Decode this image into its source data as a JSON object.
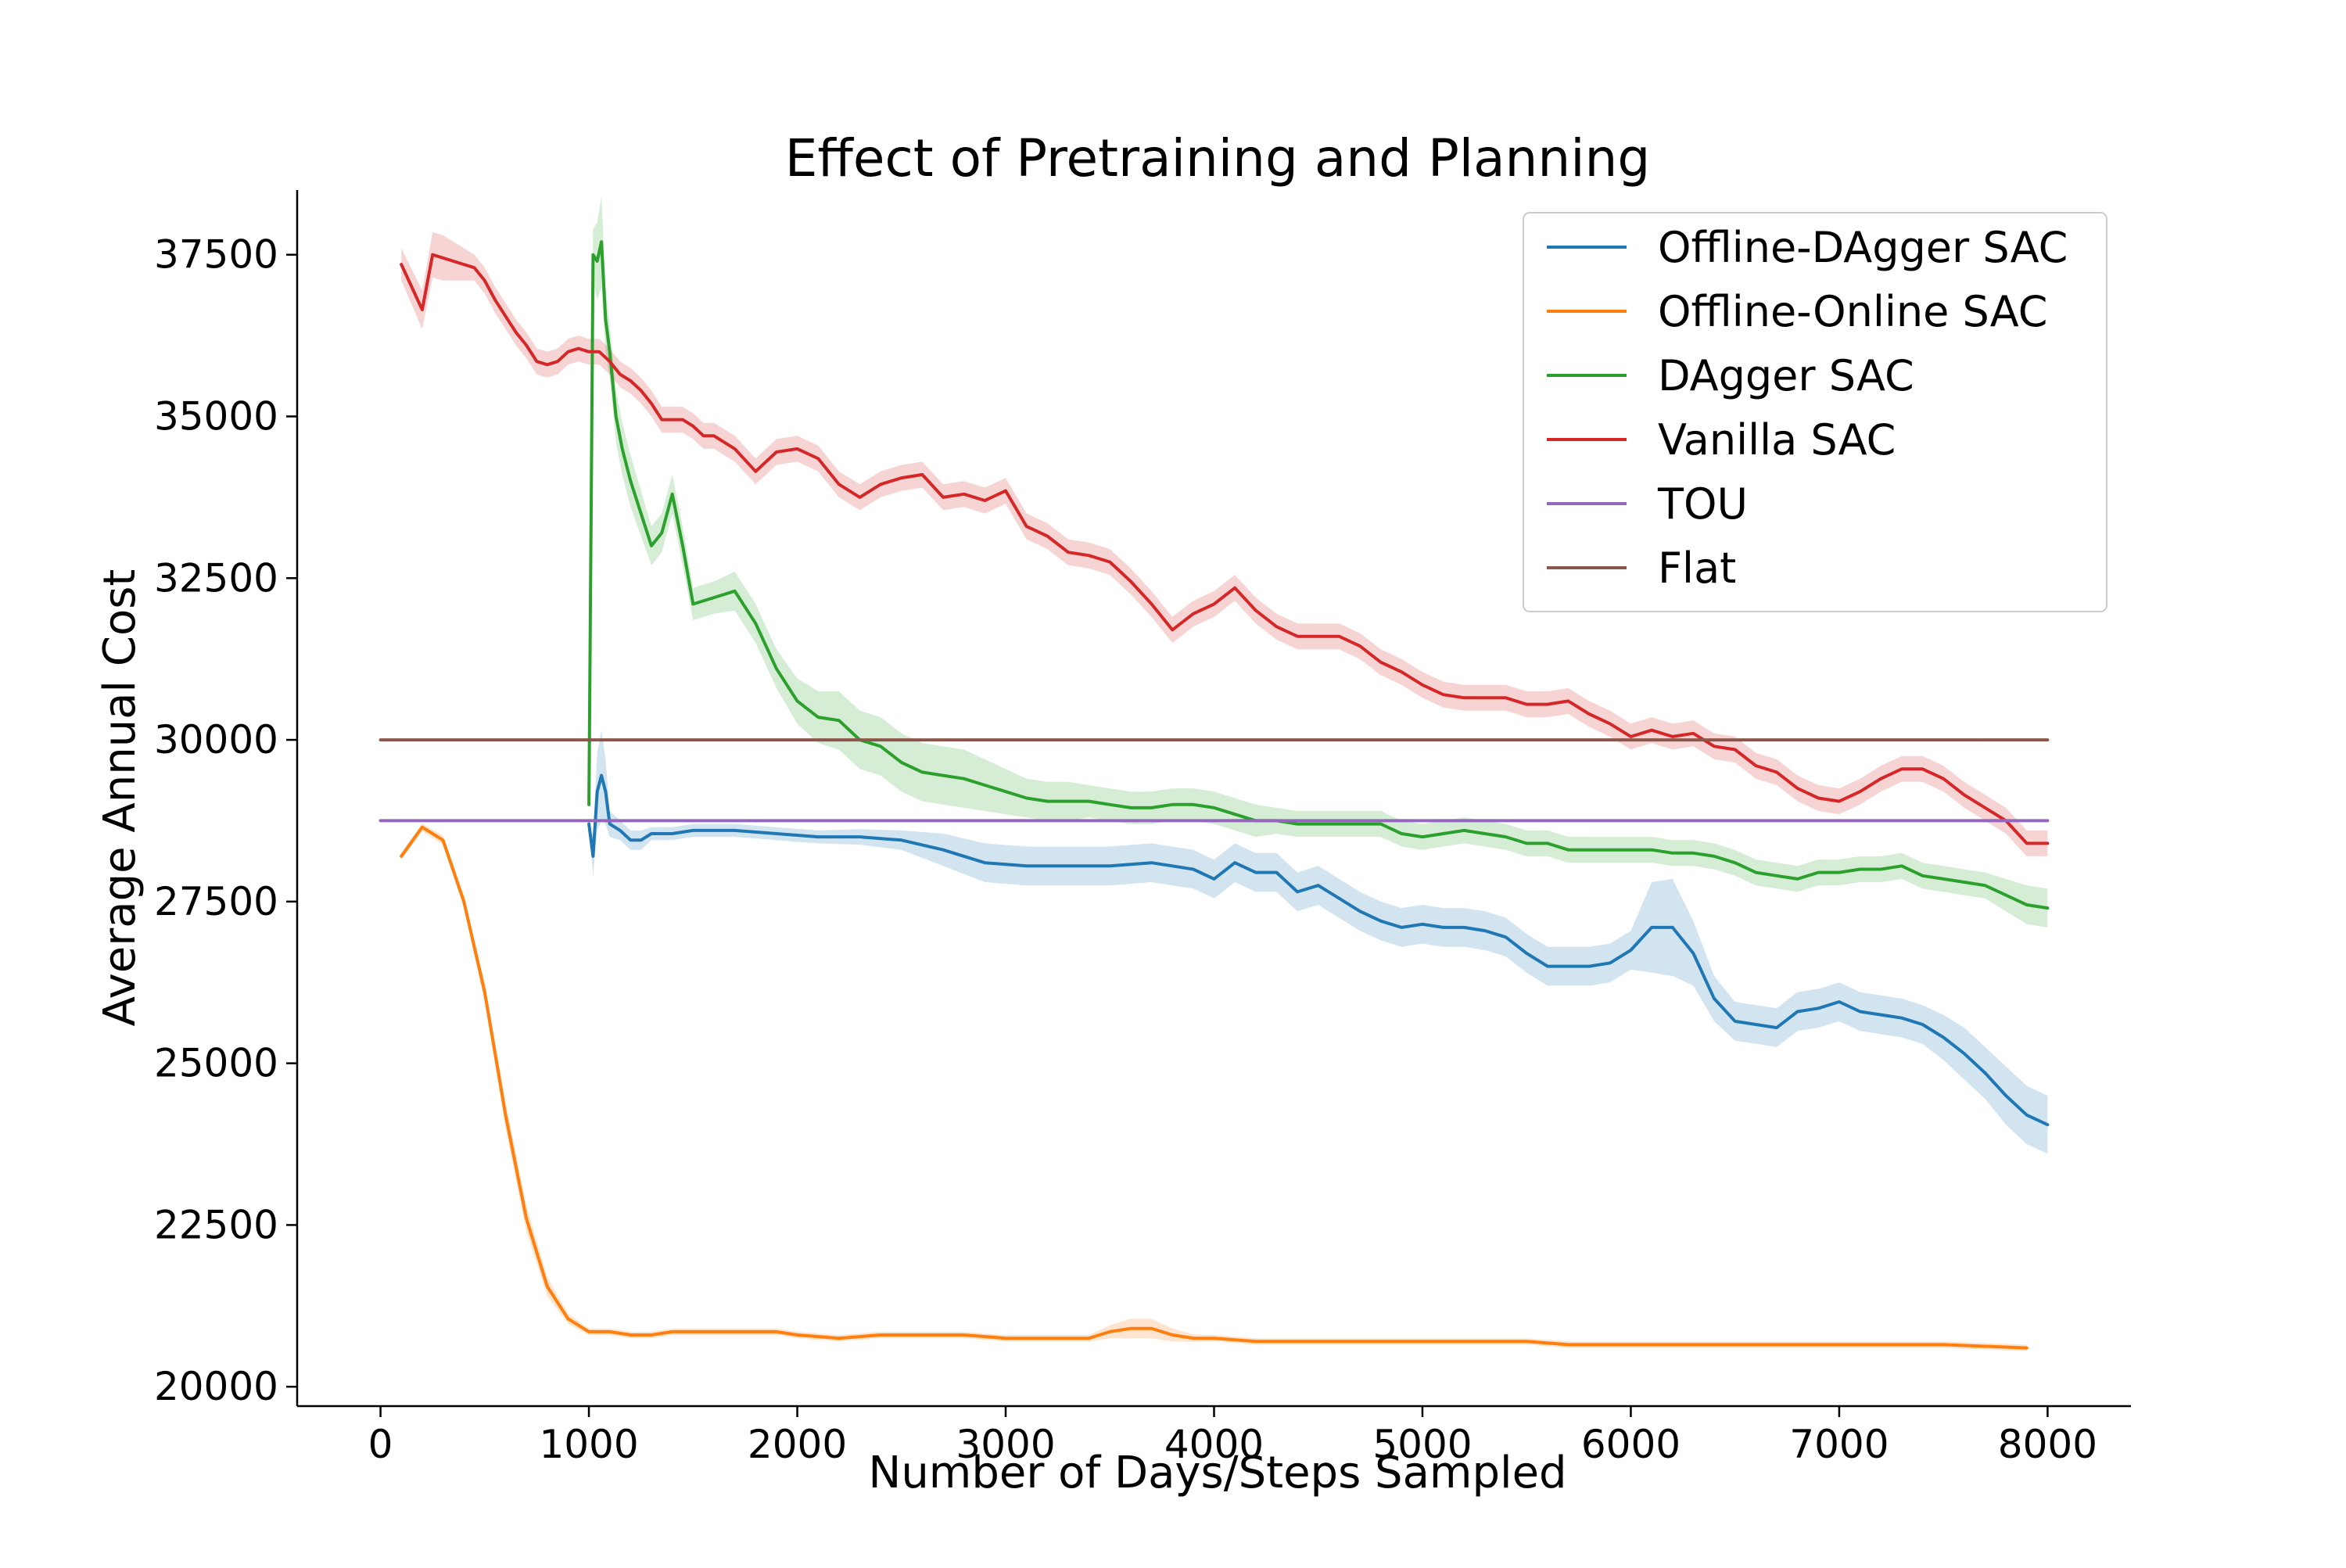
{
  "chart_data": {
    "type": "line",
    "title": "Effect of Pretraining and Planning",
    "xlabel": "Number of Days/Steps Sampled",
    "ylabel": "Average Annual Cost",
    "xlim": [
      -400,
      8400
    ],
    "ylim": [
      19700,
      38500
    ],
    "xticks": [
      0,
      1000,
      2000,
      3000,
      4000,
      5000,
      6000,
      7000,
      8000
    ],
    "yticks": [
      20000,
      22500,
      25000,
      27500,
      30000,
      32500,
      35000,
      37500
    ],
    "grid": false,
    "legend_position": "top-right",
    "series": [
      {
        "name": "Offline-DAgger SAC",
        "color": "#1f77b4",
        "x": [
          1000,
          1020,
          1040,
          1060,
          1080,
          1100,
          1150,
          1200,
          1250,
          1300,
          1400,
          1500,
          1700,
          1900,
          2100,
          2300,
          2500,
          2700,
          2900,
          3100,
          3300,
          3500,
          3700,
          3800,
          3900,
          4000,
          4100,
          4200,
          4300,
          4400,
          4500,
          4600,
          4700,
          4800,
          4900,
          5000,
          5100,
          5200,
          5300,
          5400,
          5500,
          5600,
          5700,
          5800,
          5900,
          6000,
          6100,
          6200,
          6300,
          6400,
          6500,
          6600,
          6700,
          6800,
          6900,
          7000,
          7100,
          7200,
          7300,
          7400,
          7500,
          7600,
          7700,
          7800,
          7900,
          8000
        ],
        "y": [
          28700,
          28200,
          29200,
          29450,
          29200,
          28700,
          28600,
          28450,
          28450,
          28550,
          28550,
          28600,
          28600,
          28550,
          28500,
          28500,
          28450,
          28300,
          28100,
          28050,
          28050,
          28050,
          28100,
          28050,
          28000,
          27850,
          28100,
          27950,
          27950,
          27650,
          27750,
          27550,
          27350,
          27200,
          27100,
          27150,
          27100,
          27100,
          27050,
          26950,
          26700,
          26500,
          26500,
          26500,
          26550,
          26750,
          27100,
          27100,
          26700,
          26000,
          25650,
          25600,
          25550,
          25800,
          25850,
          25950,
          25800,
          25750,
          25700,
          25600,
          25400,
          25150,
          24850,
          24500,
          24200,
          24050
        ],
        "band": [
          0,
          300,
          600,
          700,
          500,
          200,
          150,
          150,
          150,
          100,
          100,
          100,
          100,
          100,
          100,
          120,
          150,
          250,
          300,
          300,
          300,
          300,
          300,
          300,
          300,
          300,
          300,
          300,
          300,
          300,
          300,
          300,
          300,
          300,
          300,
          300,
          300,
          300,
          300,
          300,
          300,
          300,
          300,
          300,
          300,
          300,
          700,
          750,
          500,
          350,
          300,
          300,
          300,
          300,
          300,
          300,
          300,
          300,
          300,
          300,
          350,
          400,
          400,
          450,
          450,
          450
        ]
      },
      {
        "name": "Offline-Online SAC",
        "color": "#ff7f0e",
        "x": [
          100,
          200,
          300,
          400,
          500,
          600,
          700,
          800,
          900,
          1000,
          1100,
          1200,
          1300,
          1400,
          1500,
          1600,
          1700,
          1800,
          1900,
          2000,
          2200,
          2400,
          2600,
          2800,
          3000,
          3200,
          3400,
          3500,
          3600,
          3700,
          3800,
          3900,
          4000,
          4200,
          4500,
          5000,
          5300,
          5500,
          5700,
          6000,
          6500,
          7000,
          7500,
          7900
        ],
        "y": [
          28200,
          28650,
          28450,
          27500,
          26100,
          24200,
          22600,
          21550,
          21050,
          20850,
          20850,
          20800,
          20800,
          20850,
          20850,
          20850,
          20850,
          20850,
          20850,
          20800,
          20750,
          20800,
          20800,
          20800,
          20750,
          20750,
          20750,
          20850,
          20900,
          20900,
          20800,
          20750,
          20750,
          20700,
          20700,
          20700,
          20700,
          20700,
          20650,
          20650,
          20650,
          20650,
          20650,
          20600
        ],
        "band": [
          50,
          60,
          70,
          100,
          150,
          200,
          200,
          150,
          80,
          50,
          50,
          50,
          50,
          50,
          50,
          50,
          50,
          50,
          50,
          50,
          50,
          50,
          50,
          50,
          50,
          50,
          50,
          100,
          150,
          150,
          100,
          60,
          50,
          50,
          50,
          50,
          50,
          50,
          50,
          50,
          50,
          50,
          50,
          50
        ]
      },
      {
        "name": "DAgger SAC",
        "color": "#2ca02c",
        "x": [
          1000,
          1020,
          1040,
          1060,
          1080,
          1100,
          1130,
          1160,
          1200,
          1250,
          1300,
          1350,
          1400,
          1450,
          1500,
          1600,
          1700,
          1800,
          1900,
          2000,
          2100,
          2200,
          2300,
          2400,
          2500,
          2600,
          2700,
          2800,
          2900,
          3000,
          3100,
          3200,
          3300,
          3400,
          3500,
          3600,
          3700,
          3800,
          3900,
          4000,
          4100,
          4200,
          4300,
          4400,
          4500,
          4600,
          4700,
          4800,
          4900,
          5000,
          5100,
          5200,
          5300,
          5400,
          5500,
          5600,
          5700,
          5800,
          5900,
          6000,
          6100,
          6200,
          6300,
          6400,
          6500,
          6600,
          6700,
          6800,
          6900,
          7000,
          7100,
          7200,
          7300,
          7400,
          7500,
          7600,
          7700,
          7800,
          7900,
          8000
        ],
        "y": [
          29000,
          37500,
          37400,
          37700,
          36500,
          36000,
          35000,
          34500,
          34000,
          33500,
          33000,
          33200,
          33800,
          33000,
          32100,
          32200,
          32300,
          31800,
          31100,
          30600,
          30350,
          30300,
          30000,
          29900,
          29650,
          29500,
          29450,
          29400,
          29300,
          29200,
          29100,
          29050,
          29050,
          29050,
          29000,
          28950,
          28950,
          29000,
          29000,
          28950,
          28850,
          28750,
          28750,
          28700,
          28700,
          28700,
          28700,
          28700,
          28550,
          28500,
          28550,
          28600,
          28550,
          28500,
          28400,
          28400,
          28300,
          28300,
          28300,
          28300,
          28300,
          28250,
          28250,
          28200,
          28100,
          27950,
          27900,
          27850,
          27950,
          27950,
          28000,
          28000,
          28050,
          27900,
          27850,
          27800,
          27750,
          27600,
          27450,
          27400
        ],
        "band": [
          0,
          400,
          600,
          700,
          500,
          400,
          400,
          400,
          400,
          350,
          300,
          300,
          300,
          300,
          250,
          250,
          300,
          300,
          300,
          350,
          400,
          450,
          450,
          450,
          450,
          450,
          450,
          450,
          400,
          350,
          300,
          300,
          300,
          250,
          250,
          250,
          250,
          250,
          250,
          250,
          250,
          250,
          200,
          200,
          200,
          200,
          200,
          200,
          200,
          200,
          200,
          200,
          200,
          200,
          200,
          200,
          200,
          200,
          200,
          200,
          200,
          200,
          200,
          200,
          200,
          200,
          200,
          200,
          200,
          200,
          200,
          200,
          200,
          200,
          200,
          200,
          200,
          250,
          300,
          300
        ]
      },
      {
        "name": "Vanilla SAC",
        "color": "#d62728",
        "x": [
          100,
          200,
          250,
          300,
          350,
          400,
          450,
          500,
          550,
          600,
          650,
          700,
          750,
          800,
          850,
          900,
          950,
          1000,
          1050,
          1100,
          1150,
          1200,
          1250,
          1300,
          1350,
          1400,
          1450,
          1500,
          1550,
          1600,
          1700,
          1800,
          1900,
          2000,
          2100,
          2200,
          2300,
          2400,
          2500,
          2600,
          2700,
          2800,
          2900,
          3000,
          3100,
          3200,
          3300,
          3400,
          3500,
          3600,
          3700,
          3800,
          3900,
          4000,
          4100,
          4200,
          4300,
          4400,
          4500,
          4600,
          4700,
          4800,
          4900,
          5000,
          5100,
          5200,
          5300,
          5400,
          5500,
          5600,
          5700,
          5800,
          5900,
          6000,
          6100,
          6200,
          6300,
          6400,
          6500,
          6600,
          6700,
          6800,
          6900,
          7000,
          7100,
          7200,
          7300,
          7400,
          7500,
          7600,
          7700,
          7800,
          7900,
          8000
        ],
        "y": [
          37350,
          36650,
          37500,
          37450,
          37400,
          37350,
          37300,
          37100,
          36800,
          36550,
          36300,
          36100,
          35850,
          35800,
          35850,
          36000,
          36050,
          36000,
          36000,
          35850,
          35650,
          35550,
          35400,
          35200,
          34950,
          34950,
          34950,
          34850,
          34700,
          34700,
          34500,
          34150,
          34450,
          34500,
          34350,
          33950,
          33750,
          33950,
          34050,
          34100,
          33750,
          33800,
          33700,
          33850,
          33300,
          33150,
          32900,
          32850,
          32750,
          32450,
          32100,
          31700,
          31950,
          32100,
          32350,
          32000,
          31750,
          31600,
          31600,
          31600,
          31450,
          31200,
          31050,
          30850,
          30700,
          30650,
          30650,
          30650,
          30550,
          30550,
          30600,
          30400,
          30250,
          30050,
          30150,
          30050,
          30100,
          29900,
          29850,
          29600,
          29500,
          29250,
          29100,
          29050,
          29200,
          29400,
          29550,
          29550,
          29400,
          29150,
          28950,
          28750,
          28400,
          28400
        ],
        "band": [
          250,
          300,
          350,
          350,
          300,
          250,
          200,
          200,
          200,
          200,
          200,
          200,
          200,
          200,
          200,
          200,
          200,
          200,
          200,
          200,
          200,
          200,
          200,
          200,
          200,
          200,
          200,
          200,
          200,
          200,
          200,
          200,
          200,
          200,
          200,
          200,
          200,
          200,
          200,
          200,
          200,
          200,
          200,
          200,
          200,
          200,
          200,
          200,
          200,
          200,
          200,
          200,
          200,
          200,
          200,
          200,
          200,
          200,
          200,
          200,
          200,
          200,
          200,
          200,
          200,
          200,
          200,
          200,
          200,
          200,
          200,
          200,
          200,
          200,
          200,
          200,
          200,
          200,
          200,
          200,
          200,
          200,
          200,
          200,
          200,
          200,
          200,
          200,
          200,
          200,
          200,
          200,
          200,
          200
        ]
      },
      {
        "name": "TOU",
        "color": "#9467bd",
        "x": [
          0,
          8000
        ],
        "y": [
          28750,
          28750
        ]
      },
      {
        "name": "Flat",
        "color": "#8c564b",
        "x": [
          0,
          8000
        ],
        "y": [
          30000,
          30000
        ]
      }
    ]
  }
}
